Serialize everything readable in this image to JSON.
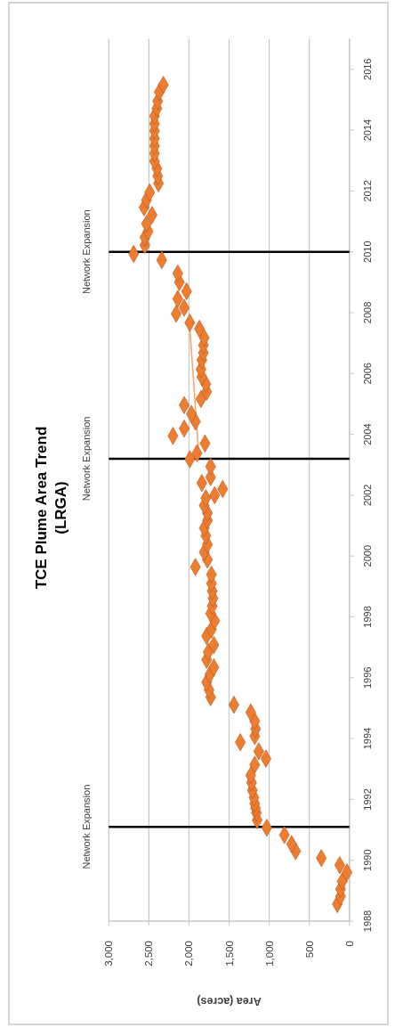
{
  "chart_data": {
    "type": "scatter",
    "title": "TCE Plume Area Trend (LRGA)",
    "xlabel": "Area (acres)",
    "ylim": [
      1988,
      2017
    ],
    "yticks": [
      1988,
      1990,
      1992,
      1994,
      1996,
      1998,
      2000,
      2002,
      2004,
      2006,
      2008,
      2010,
      2012,
      2014,
      2016
    ],
    "xlim": [
      3000,
      0
    ],
    "xticks": [
      {
        "value": 3000,
        "label": "3,000"
      },
      {
        "value": 2500,
        "label": "2,500"
      },
      {
        "value": 2000,
        "label": "2,000"
      },
      {
        "value": 1500,
        "label": "1,500"
      },
      {
        "value": 1000,
        "label": "1,000"
      },
      500,
      0
    ],
    "grid": "x",
    "marker": "diamond",
    "ref_lines": [
      {
        "axis": "y",
        "value": 1991.1,
        "label": "Network Expansion",
        "color": "#000000"
      },
      {
        "axis": "y",
        "value": 2003.2,
        "label": "Network Expansion",
        "color": "#000000"
      },
      {
        "axis": "y",
        "value": 2010.0,
        "label": "Network Expansion",
        "color": "#000000"
      }
    ],
    "series": [
      {
        "type": "line",
        "marker": "none",
        "color": "#f5a55e",
        "x": [
          1880,
          1990
        ],
        "values": [
          2003.4,
          2007.5
        ]
      },
      {
        "color": "#ed7d31",
        "x": [
          150,
          110,
          110,
          90,
          30,
          120,
          350,
          670,
          720,
          810,
          1030,
          1150,
          1160,
          1170,
          1180,
          1190,
          1210,
          1220,
          1230,
          1180,
          1040,
          1130,
          1360,
          1180,
          1170,
          1180,
          1230,
          1440,
          1730,
          1750,
          1780,
          1740,
          1690,
          1780,
          1760,
          1690,
          1780,
          1720,
          1680,
          1730,
          1710,
          1700,
          1710,
          1720,
          1720,
          1920,
          1770,
          1810,
          1770,
          1790,
          1810,
          1770,
          1770,
          1810,
          1790,
          1680,
          1580,
          1840,
          1730,
          1730,
          1990,
          1900,
          1800,
          2200,
          2060,
          1920,
          1970,
          2060,
          1850,
          1780,
          1790,
          1840,
          1850,
          1840,
          1820,
          1820,
          1810,
          1870,
          1990,
          2160,
          2060,
          2140,
          2030,
          2120,
          2140,
          2340,
          2690,
          2550,
          2550,
          2510,
          2530,
          2460,
          2560,
          2530,
          2490,
          2380,
          2390,
          2400,
          2430,
          2430,
          2430,
          2430,
          2430,
          2430,
          2430,
          2400,
          2390,
          2370,
          2320
        ],
        "values": [
          1988.56,
          1988.81,
          1989.05,
          1989.3,
          1989.6,
          1989.84,
          1990.07,
          1990.3,
          1990.53,
          1990.83,
          1991.07,
          1991.32,
          1991.56,
          1991.71,
          1991.86,
          1992.06,
          1992.3,
          1992.55,
          1992.79,
          1993.14,
          1993.34,
          1993.58,
          1993.88,
          1994.08,
          1994.32,
          1994.57,
          1994.86,
          1995.11,
          1995.36,
          1995.6,
          1995.85,
          1996.1,
          1996.34,
          1996.59,
          1996.84,
          1997.08,
          1997.37,
          1997.59,
          1997.87,
          1998.11,
          1998.36,
          1998.61,
          1998.85,
          1999.1,
          1999.39,
          1999.64,
          1999.88,
          2000.13,
          2000.38,
          2000.67,
          2000.92,
          2001.17,
          2001.41,
          2001.66,
          2001.9,
          2002.0,
          2002.2,
          2002.4,
          2002.59,
          2002.94,
          2003.18,
          2003.38,
          2003.7,
          2003.95,
          2004.19,
          2004.42,
          2004.67,
          2004.96,
          2005.16,
          2005.4,
          2005.65,
          2005.89,
          2006.14,
          2006.44,
          2006.68,
          2006.93,
          2007.17,
          2007.47,
          2007.67,
          2007.96,
          2008.16,
          2008.45,
          2008.7,
          2009.0,
          2009.29,
          2009.73,
          2009.93,
          2010.22,
          2010.47,
          2010.67,
          2010.92,
          2011.21,
          2011.46,
          2011.7,
          2011.95,
          2012.25,
          2012.49,
          2012.74,
          2012.98,
          2013.23,
          2013.48,
          2013.72,
          2013.97,
          2014.21,
          2014.46,
          2014.71,
          2014.95,
          2015.25,
          2015.49
        ]
      }
    ]
  }
}
